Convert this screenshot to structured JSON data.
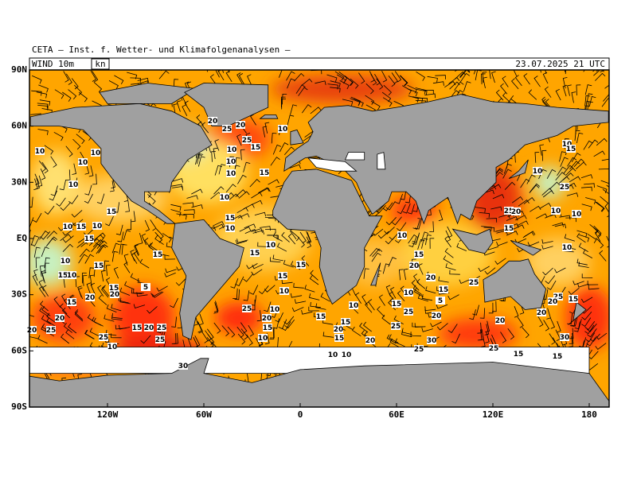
{
  "header": {
    "title": "CETA – Inst. f. Wetter- und Klimafolgenanalysen –"
  },
  "panel": {
    "field": "WIND 10m",
    "unit": "kn",
    "time": "23.07.2025 21 UTC"
  },
  "axes": {
    "lat_labels": [
      "90N",
      "60N",
      "30N",
      "EQ",
      "30S",
      "60S",
      "90S"
    ],
    "lon_labels": [
      "120W",
      "60W",
      "0",
      "60E",
      "120E",
      "180"
    ]
  },
  "contour_labels": [
    "20",
    "25",
    "20",
    "10",
    "25",
    "15",
    "10",
    "10",
    "10",
    "15",
    "10",
    "10",
    "10",
    "10",
    "10",
    "15",
    "15",
    "10",
    "10",
    "15",
    "10",
    "15",
    "10",
    "15",
    "15",
    "10",
    "15",
    "15",
    "10",
    "15",
    "15",
    "10",
    "15",
    "20",
    "20",
    "15",
    "25",
    "10",
    "5",
    "15",
    "20",
    "5",
    "20",
    "15",
    "10",
    "25",
    "10",
    "20",
    "15",
    "10",
    "15",
    "25",
    "20",
    "20",
    "20",
    "25",
    "15",
    "20",
    "25",
    "25",
    "10",
    "25",
    "15",
    "10",
    "15",
    "20",
    "15",
    "25",
    "20",
    "30",
    "25",
    "25",
    "15",
    "20",
    "20",
    "30",
    "30",
    "10",
    "10",
    "25",
    "20",
    "15",
    "10",
    "10",
    "10",
    "10",
    "10",
    "15",
    "25",
    "25",
    "20",
    "15",
    "15"
  ]
}
